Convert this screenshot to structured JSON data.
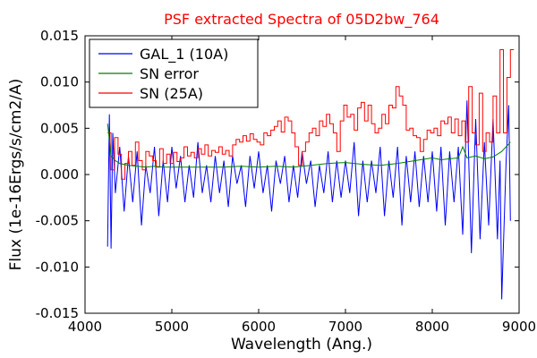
{
  "chart_data": {
    "type": "line",
    "title": "PSF extracted Spectra of 05D2bw_764",
    "title_color": "#ff0000",
    "xlabel": "Wavelength (Ang.)",
    "ylabel": "Flux (1e-16Ergs/s/cm2/A)",
    "xlim": [
      4000,
      9000
    ],
    "ylim": [
      -0.015,
      0.015
    ],
    "x_ticks": [
      4000,
      5000,
      6000,
      7000,
      8000,
      9000
    ],
    "x_tick_labels": [
      "4000",
      "5000",
      "6000",
      "7000",
      "8000",
      "9000"
    ],
    "y_ticks": [
      -0.015,
      -0.01,
      -0.005,
      0.0,
      0.005,
      0.01,
      0.015
    ],
    "y_tick_labels": [
      "-0.015",
      "-0.010",
      "-0.005",
      "0.000",
      "0.005",
      "0.010",
      "0.015"
    ],
    "grid": false,
    "legend_position": "top-left",
    "series": [
      {
        "name": "GAL_1 (10A)",
        "color": "#0000ff",
        "step": false,
        "x": [
          4260,
          4280,
          4300,
          4320,
          4350,
          4400,
          4450,
          4500,
          4550,
          4600,
          4650,
          4700,
          4750,
          4800,
          4850,
          4900,
          4950,
          5000,
          5050,
          5100,
          5150,
          5200,
          5250,
          5300,
          5350,
          5400,
          5450,
          5500,
          5550,
          5600,
          5650,
          5700,
          5750,
          5800,
          5850,
          5900,
          5950,
          6000,
          6050,
          6100,
          6150,
          6200,
          6250,
          6300,
          6350,
          6400,
          6450,
          6500,
          6550,
          6600,
          6650,
          6700,
          6750,
          6800,
          6850,
          6900,
          6950,
          7000,
          7050,
          7100,
          7150,
          7200,
          7250,
          7300,
          7350,
          7400,
          7450,
          7500,
          7550,
          7600,
          7650,
          7700,
          7750,
          7800,
          7850,
          7900,
          7950,
          8000,
          8050,
          8100,
          8150,
          8200,
          8250,
          8300,
          8350,
          8400,
          8450,
          8500,
          8550,
          8600,
          8650,
          8700,
          8750,
          8780,
          8800,
          8850,
          8880,
          8900
        ],
        "y": [
          -0.0078,
          0.0065,
          -0.008,
          0.0045,
          -0.002,
          0.003,
          -0.004,
          0.002,
          -0.003,
          0.0025,
          -0.0055,
          0.001,
          -0.002,
          0.003,
          -0.0045,
          0.0015,
          -0.003,
          0.003,
          -0.0015,
          0.002,
          -0.003,
          0.001,
          -0.0025,
          0.0035,
          -0.002,
          0.001,
          -0.003,
          0.002,
          -0.002,
          0.0015,
          -0.0035,
          0.002,
          -0.001,
          0.001,
          -0.0035,
          0.002,
          -0.0015,
          0.0025,
          -0.002,
          0.001,
          -0.004,
          0.0015,
          -0.001,
          0.002,
          -0.003,
          0.001,
          -0.0025,
          0.0025,
          -0.001,
          0.0015,
          -0.0035,
          0.001,
          -0.002,
          0.0025,
          -0.003,
          0.0015,
          -0.0025,
          0.0015,
          -0.002,
          0.0035,
          -0.0045,
          0.0015,
          -0.003,
          0.0015,
          -0.002,
          0.003,
          -0.0045,
          0.0015,
          -0.0025,
          0.003,
          -0.0055,
          0.002,
          -0.003,
          0.0025,
          -0.0035,
          0.002,
          -0.003,
          0.0025,
          -0.004,
          0.003,
          -0.0055,
          0.0025,
          -0.003,
          0.003,
          -0.0065,
          0.008,
          -0.0085,
          0.006,
          -0.007,
          0.0035,
          -0.0055,
          0.006,
          -0.007,
          0.0015,
          -0.0135,
          0.0015,
          0.0075,
          -0.005
        ]
      },
      {
        "name": "SN error",
        "color": "#008000",
        "step": false,
        "x": [
          4260,
          4280,
          4300,
          4350,
          4400,
          4500,
          4600,
          4700,
          4800,
          4900,
          5000,
          5200,
          5400,
          5600,
          5800,
          6000,
          6200,
          6400,
          6600,
          6800,
          7000,
          7200,
          7400,
          7600,
          7800,
          8000,
          8100,
          8200,
          8300,
          8350,
          8400,
          8500,
          8600,
          8700,
          8800,
          8900
        ],
        "y": [
          0.0055,
          0.0038,
          0.002,
          0.0015,
          0.0012,
          0.001,
          0.0009,
          0.0008,
          0.0009,
          0.0008,
          0.0008,
          0.0008,
          0.0008,
          0.0008,
          0.0009,
          0.0008,
          0.0009,
          0.0008,
          0.001,
          0.0012,
          0.0013,
          0.0011,
          0.001,
          0.0012,
          0.0015,
          0.0018,
          0.0016,
          0.0017,
          0.0018,
          0.003,
          0.0018,
          0.002,
          0.0017,
          0.0019,
          0.0025,
          0.0035
        ]
      },
      {
        "name": "SN (25A)",
        "color": "#ff0000",
        "step": true,
        "x": [
          4260,
          4300,
          4340,
          4380,
          4420,
          4460,
          4500,
          4540,
          4580,
          4620,
          4660,
          4700,
          4740,
          4780,
          4820,
          4860,
          4900,
          4940,
          4980,
          5020,
          5060,
          5100,
          5140,
          5180,
          5220,
          5260,
          5300,
          5340,
          5380,
          5420,
          5460,
          5500,
          5540,
          5580,
          5620,
          5660,
          5700,
          5740,
          5780,
          5820,
          5860,
          5900,
          5940,
          5980,
          6020,
          6060,
          6100,
          6140,
          6180,
          6220,
          6260,
          6300,
          6340,
          6380,
          6420,
          6460,
          6500,
          6540,
          6580,
          6620,
          6660,
          6700,
          6740,
          6780,
          6820,
          6860,
          6900,
          6940,
          6980,
          7020,
          7060,
          7100,
          7140,
          7180,
          7220,
          7260,
          7300,
          7340,
          7380,
          7420,
          7460,
          7500,
          7540,
          7580,
          7620,
          7660,
          7700,
          7740,
          7780,
          7820,
          7860,
          7900,
          7940,
          7980,
          8020,
          8060,
          8100,
          8140,
          8180,
          8220,
          8260,
          8300,
          8340,
          8380,
          8420,
          8460,
          8500,
          8540,
          8580,
          8620,
          8660,
          8700,
          8740,
          8780,
          8820,
          8860,
          8900
        ],
        "y": [
          0.0045,
          0.0005,
          0.004,
          0.0022,
          -0.0005,
          0.0012,
          0.0025,
          0.001,
          0.0035,
          0.0015,
          0.0005,
          0.0025,
          0.002,
          0.0015,
          0.0008,
          0.0028,
          0.0012,
          0.0022,
          0.0012,
          0.0024,
          0.0014,
          0.0018,
          0.003,
          0.002,
          0.0024,
          0.0018,
          0.0028,
          0.0022,
          0.0032,
          0.002,
          0.0026,
          0.0024,
          0.003,
          0.0022,
          0.0026,
          0.002,
          0.0032,
          0.0038,
          0.0035,
          0.0042,
          0.0036,
          0.0044,
          0.0038,
          0.0035,
          0.0032,
          0.0045,
          0.0042,
          0.0048,
          0.0052,
          0.0058,
          0.0046,
          0.0062,
          0.0058,
          0.0045,
          0.003,
          0.001,
          0.0025,
          0.0035,
          0.0045,
          0.005,
          0.0042,
          0.0058,
          0.0052,
          0.0065,
          0.0055,
          0.0045,
          0.0025,
          0.0058,
          0.0075,
          0.0062,
          0.0065,
          0.0048,
          0.0072,
          0.0078,
          0.0058,
          0.0075,
          0.0055,
          0.0045,
          0.005,
          0.0065,
          0.0055,
          0.0075,
          0.0072,
          0.0095,
          0.0085,
          0.0075,
          0.0048,
          0.005,
          0.0042,
          0.004,
          0.0025,
          0.0038,
          0.0048,
          0.0045,
          0.005,
          0.0042,
          0.0058,
          0.0055,
          0.0062,
          0.0045,
          0.006,
          0.0042,
          0.0058,
          0.0035,
          0.0095,
          0.0045,
          0.0032,
          0.0088,
          0.0025,
          0.0045,
          0.0035,
          0.0085,
          0.0045,
          0.0135,
          0.0045,
          0.0105,
          0.0135
        ]
      }
    ]
  }
}
